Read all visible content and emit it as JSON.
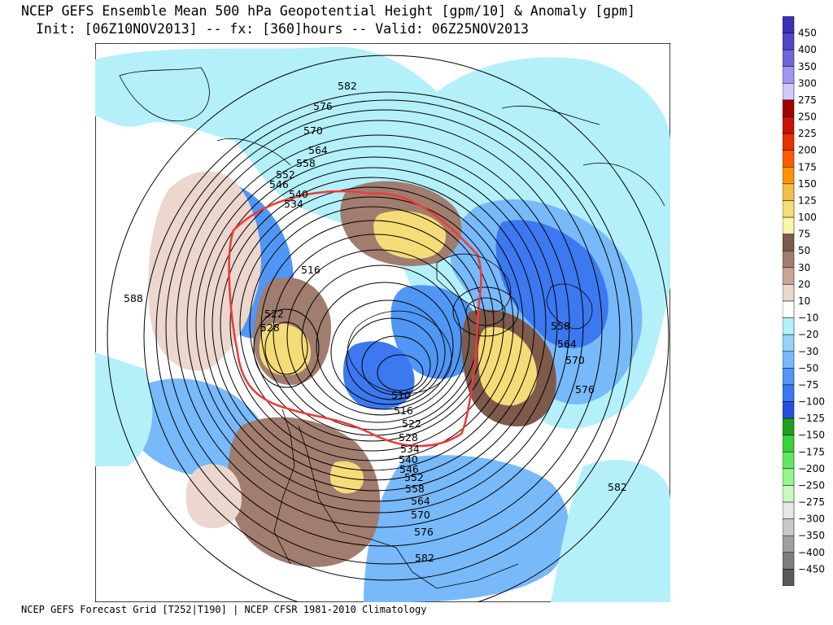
{
  "title_line1": "NCEP GEFS Ensemble Mean 500 hPa Geopotential Height [gpm/10] & Anomaly [gpm]",
  "title_line2": "Init: [06Z10NOV2013] -- fx: [360]hours -- Valid: 06Z25NOV2013",
  "footer": "NCEP GEFS Forecast Grid [T252|T190] | NCEP CFSR 1981-2010 Climatology",
  "legend": [
    {
      "label": "450",
      "color": "#3c32b4"
    },
    {
      "label": "400",
      "color": "#5046c8"
    },
    {
      "label": "350",
      "color": "#7064dc"
    },
    {
      "label": "300",
      "color": "#a096f0"
    },
    {
      "label": "275",
      "color": "#d2c8fa"
    },
    {
      "label": "250",
      "color": "#a00000"
    },
    {
      "label": "225",
      "color": "#c81400"
    },
    {
      "label": "200",
      "color": "#e63200"
    },
    {
      "label": "175",
      "color": "#ff5a00"
    },
    {
      "label": "150",
      "color": "#ff9600"
    },
    {
      "label": "125",
      "color": "#f5be4b"
    },
    {
      "label": "100",
      "color": "#f5dc78"
    },
    {
      "label": "75",
      "color": "#fff5aa"
    },
    {
      "label": "50",
      "color": "#7d5a4b"
    },
    {
      "label": "30",
      "color": "#a07d6e"
    },
    {
      "label": "20",
      "color": "#c8a596"
    },
    {
      "label": "10",
      "color": "#ebd7cd"
    },
    {
      "label": "−10",
      "color": "#ffffff"
    },
    {
      "label": "−20",
      "color": "#b4f0fa"
    },
    {
      "label": "−30",
      "color": "#96d2fa"
    },
    {
      "label": "−50",
      "color": "#78b9fa"
    },
    {
      "label": "−75",
      "color": "#5096f5"
    },
    {
      "label": "−100",
      "color": "#3c78f0"
    },
    {
      "label": "−125",
      "color": "#2850dc"
    },
    {
      "label": "−150",
      "color": "#1ea01e"
    },
    {
      "label": "−175",
      "color": "#37d23c"
    },
    {
      "label": "−200",
      "color": "#64e664"
    },
    {
      "label": "−250",
      "color": "#96f58c"
    },
    {
      "label": "−275",
      "color": "#c8fabe"
    },
    {
      "label": "−300",
      "color": "#e6e6e6"
    },
    {
      "label": "−350",
      "color": "#c8c8c8"
    },
    {
      "label": "−400",
      "color": "#a0a0a0"
    },
    {
      "label": "−450",
      "color": "#7d7d7d"
    },
    {
      "label": "",
      "color": "#5a5a5a"
    }
  ],
  "contour_labels": [
    "582",
    "576",
    "570",
    "564",
    "558",
    "552",
    "546",
    "540",
    "534",
    "516",
    "522",
    "528",
    "588",
    "510",
    "516",
    "522",
    "528",
    "534",
    "540",
    "546",
    "552",
    "558",
    "564",
    "570",
    "576",
    "582",
    "558",
    "564",
    "570",
    "576",
    "582"
  ]
}
